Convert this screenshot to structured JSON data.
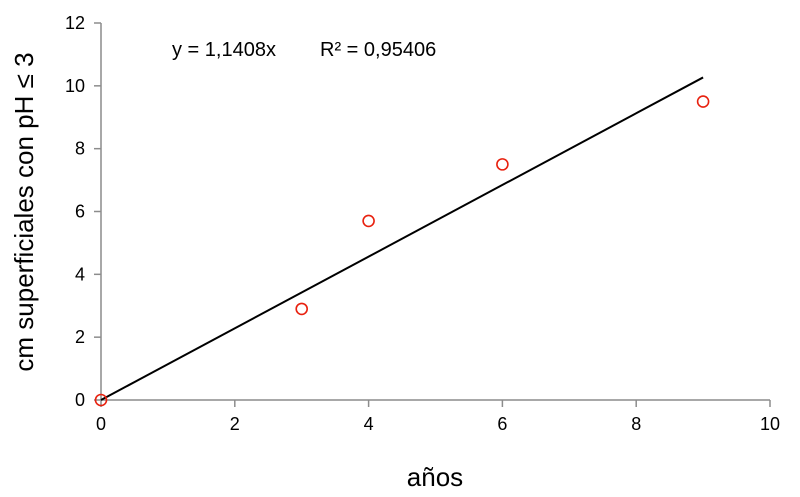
{
  "chart_data": {
    "type": "scatter",
    "title": "",
    "xlabel": "años",
    "ylabel": "cm superficiales con pH ≤ 3",
    "xlim": [
      0,
      10
    ],
    "ylim": [
      0,
      12
    ],
    "xticks": [
      0,
      2,
      4,
      6,
      8,
      10
    ],
    "yticks": [
      0,
      2,
      4,
      6,
      8,
      10,
      12
    ],
    "grid": false,
    "legend": "none",
    "series": [
      {
        "x": [
          0,
          3,
          4,
          6,
          9
        ],
        "y": [
          0,
          2.9,
          5.7,
          7.5,
          9.5
        ],
        "marker": "open-circle",
        "color": "#e8210f"
      }
    ],
    "trendline": {
      "type": "linear-through-origin",
      "slope": 1.1408,
      "x_range": [
        0,
        9
      ],
      "color": "#000000"
    },
    "annotations": {
      "equation": "y = 1,1408x",
      "r_squared": "R² = 0,95406"
    }
  }
}
